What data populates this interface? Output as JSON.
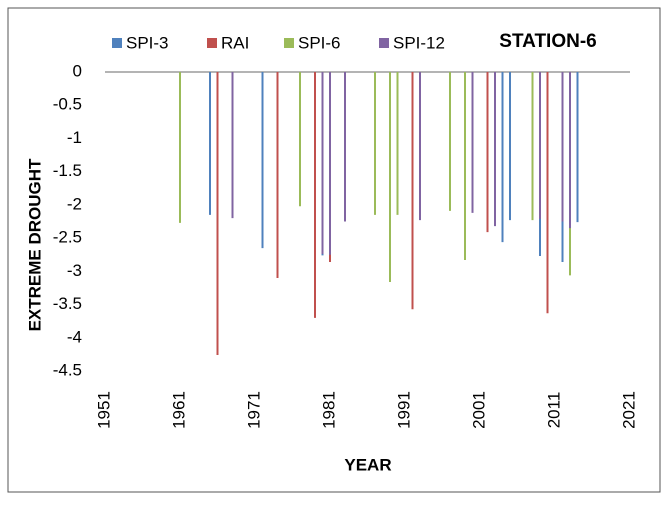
{
  "chart_data": {
    "type": "bar",
    "title": "STATION-6",
    "x_label": "YEAR",
    "y_label": "EXTREME DROUGHT",
    "xlim": [
      1951,
      2021
    ],
    "xticks": [
      1951,
      1961,
      1971,
      1981,
      1991,
      2001,
      2011,
      2021
    ],
    "ylim": [
      -4.5,
      0
    ],
    "yticks": [
      0,
      -0.5,
      -1,
      -1.5,
      -2,
      -2.5,
      -3,
      -3.5,
      -4,
      -4.5
    ],
    "series": [
      {
        "name": "SPI-3",
        "color": "#4f81bd",
        "x": [
          1965,
          1972,
          1979,
          1980,
          2004,
          2005,
          2009,
          2012,
          2014
        ],
        "values": [
          -2.15,
          -2.65,
          -2.08,
          -2.76,
          -2.56,
          -2.23,
          -2.77,
          -2.86,
          -2.26
        ]
      },
      {
        "name": "RAI",
        "color": "#c0504d",
        "x": [
          1966,
          1974,
          1979,
          1981,
          1992,
          2000,
          2002,
          2010
        ],
        "values": [
          -4.26,
          -3.1,
          -3.7,
          -2.86,
          -3.57,
          -2.1,
          -2.41,
          -3.63
        ]
      },
      {
        "name": "SPI-6",
        "color": "#9bbb59",
        "x": [
          1961,
          1977,
          1983,
          1987,
          1989,
          1990,
          1997,
          1999,
          2008,
          2013
        ],
        "values": [
          -2.27,
          -2.02,
          -2.15,
          -2.15,
          -3.16,
          -2.15,
          -2.09,
          -2.83,
          -2.23,
          -3.06
        ]
      },
      {
        "name": "SPI-12",
        "color": "#8064a2",
        "x": [
          1968,
          1980,
          1981,
          1983,
          1993,
          2000,
          2003,
          2009,
          2012,
          2013
        ],
        "values": [
          -2.2,
          -2.74,
          -2.75,
          -2.25,
          -2.23,
          -2.12,
          -2.32,
          -2.21,
          -2.25,
          -2.35
        ]
      }
    ]
  }
}
